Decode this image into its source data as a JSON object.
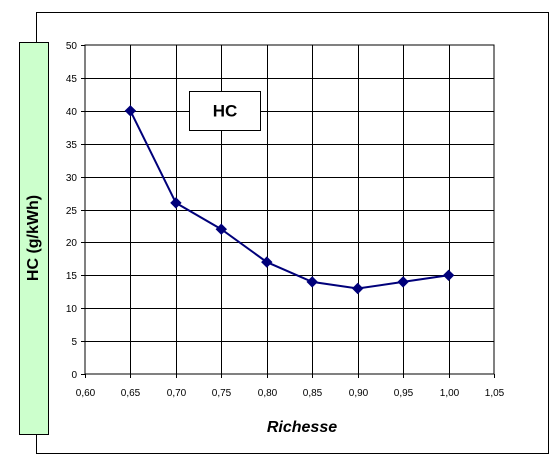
{
  "chart_data": {
    "type": "line",
    "title": "HC",
    "xlabel": "Richesse",
    "ylabel": "HC (g/kWh)",
    "xlim": [
      0.6,
      1.05
    ],
    "ylim": [
      0,
      50
    ],
    "x_ticks": [
      "0,60",
      "0,65",
      "0,70",
      "0,75",
      "0,80",
      "0,85",
      "0,90",
      "0,95",
      "1,00",
      "1,05"
    ],
    "y_ticks": [
      "0",
      "5",
      "10",
      "15",
      "20",
      "25",
      "30",
      "35",
      "40",
      "45",
      "50"
    ],
    "grid": true,
    "series": [
      {
        "x": [
          0.65,
          0.7,
          0.75,
          0.8,
          0.85,
          0.9,
          0.95,
          1.0
        ],
        "y": [
          40,
          26,
          22,
          17,
          14,
          13,
          14,
          15
        ],
        "color": "#00007a",
        "marker": "diamond"
      }
    ],
    "colors": {
      "ylabel_box": "#ccffcc",
      "line": "#00007a",
      "grid": "#000000"
    }
  }
}
